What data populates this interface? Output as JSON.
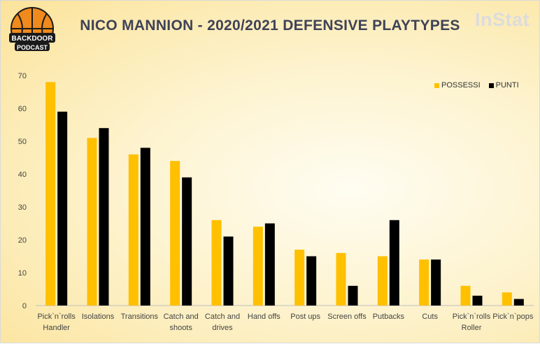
{
  "logo": {
    "top_text": "BACKDOOR",
    "bottom_text": "PODCAST"
  },
  "brand": "InStat",
  "chart_data": {
    "type": "bar",
    "title": "NICO MANNION - 2020/2021 DEFENSIVE PLAYTYPES",
    "categories": [
      [
        "Pick`n`rolls",
        "Handler"
      ],
      [
        "Isolations"
      ],
      [
        "Transitions"
      ],
      [
        "Catch and",
        "shoots"
      ],
      [
        "Catch and",
        "drives"
      ],
      [
        "Hand offs"
      ],
      [
        "Post ups"
      ],
      [
        "Screen offs"
      ],
      [
        "Putbacks"
      ],
      [
        "Cuts"
      ],
      [
        "Pick`n`rolls",
        "Roller"
      ],
      [
        "Pick`n`pops"
      ]
    ],
    "series": [
      {
        "name": "POSSESSI",
        "color": "#ffc000",
        "values": [
          68,
          51,
          46,
          44,
          26,
          24,
          17,
          16,
          15,
          14,
          6,
          4
        ]
      },
      {
        "name": "PUNTI",
        "color": "#000000",
        "values": [
          59,
          54,
          48,
          39,
          21,
          25,
          15,
          6,
          26,
          14,
          3,
          2
        ]
      }
    ],
    "ylim": [
      0,
      70
    ],
    "yticks": [
      "0",
      "10",
      "20",
      "30",
      "40",
      "50",
      "60",
      "70"
    ],
    "xlabel": "",
    "ylabel": "",
    "grid": false,
    "legend_position": "top-right"
  }
}
